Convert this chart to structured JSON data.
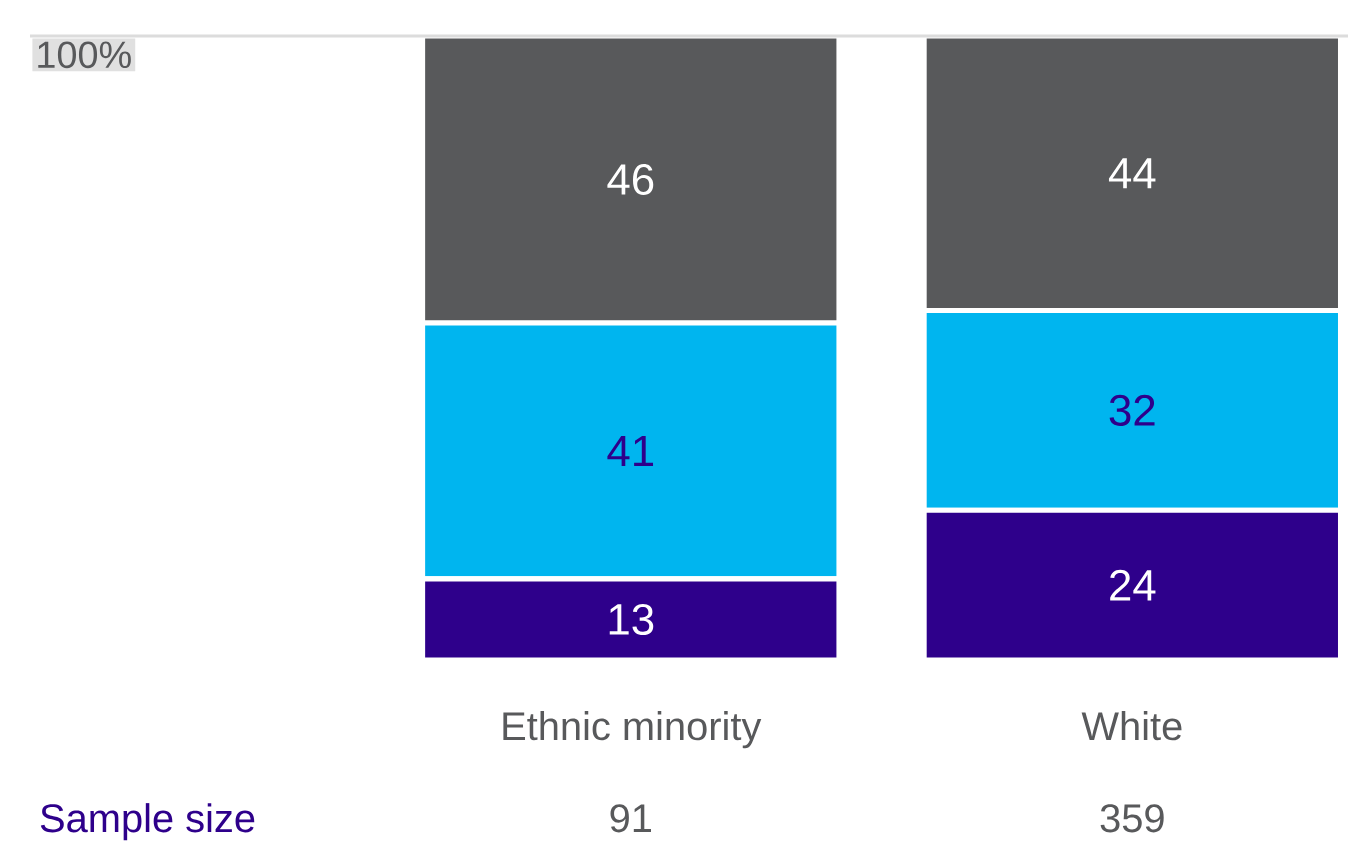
{
  "chart_data": {
    "type": "bar",
    "stacked": true,
    "categories": [
      "Ethnic minority",
      "White"
    ],
    "series": [
      {
        "color": "#2e008b",
        "values": [
          13,
          24
        ]
      },
      {
        "color": "#00b5ef",
        "values": [
          41,
          32
        ]
      },
      {
        "color": "#58595b",
        "values": [
          46,
          44
        ]
      }
    ],
    "ref_lines": [
      {
        "axis": "y",
        "value": 100,
        "label": "100%",
        "color": "#dcdcdc"
      }
    ],
    "data_labels": true,
    "annotations": [
      "Sample size",
      "91",
      "359"
    ]
  }
}
